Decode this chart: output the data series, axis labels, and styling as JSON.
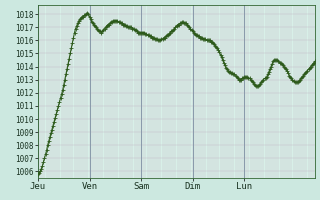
{
  "bg_color": "#cce8e0",
  "plot_bg_color": "#d8f0e8",
  "line_color": "#2d5a1b",
  "marker_color": "#2d5a1b",
  "grid_color_minor": "#c0d4c8",
  "grid_color_major": "#7799aa",
  "ylim": [
    1005.5,
    1018.7
  ],
  "yticks": [
    1006,
    1007,
    1008,
    1009,
    1010,
    1011,
    1012,
    1013,
    1014,
    1015,
    1016,
    1017,
    1018
  ],
  "day_labels": [
    "Jeu",
    "Ven",
    "Sam",
    "Dim",
    "Lun"
  ],
  "day_positions": [
    0,
    48,
    96,
    144,
    192
  ],
  "y_values": [
    1005.8,
    1005.9,
    1006.0,
    1006.2,
    1006.4,
    1006.7,
    1007.0,
    1007.3,
    1007.6,
    1008.0,
    1008.3,
    1008.6,
    1008.9,
    1009.2,
    1009.5,
    1009.8,
    1010.1,
    1010.4,
    1010.7,
    1011.0,
    1011.3,
    1011.6,
    1011.9,
    1012.2,
    1012.6,
    1013.0,
    1013.4,
    1013.8,
    1014.2,
    1014.6,
    1015.0,
    1015.4,
    1015.8,
    1016.2,
    1016.6,
    1016.9,
    1017.1,
    1017.3,
    1017.5,
    1017.6,
    1017.7,
    1017.8,
    1017.8,
    1017.9,
    1017.9,
    1018.0,
    1018.1,
    1018.0,
    1017.8,
    1017.6,
    1017.4,
    1017.3,
    1017.2,
    1017.1,
    1017.0,
    1016.9,
    1016.8,
    1016.7,
    1016.7,
    1016.6,
    1016.7,
    1016.8,
    1016.9,
    1017.0,
    1017.1,
    1017.2,
    1017.2,
    1017.3,
    1017.4,
    1017.4,
    1017.5,
    1017.5,
    1017.5,
    1017.5,
    1017.5,
    1017.4,
    1017.4,
    1017.3,
    1017.3,
    1017.2,
    1017.2,
    1017.2,
    1017.1,
    1017.1,
    1017.0,
    1017.0,
    1017.0,
    1017.0,
    1016.9,
    1016.9,
    1016.8,
    1016.8,
    1016.7,
    1016.6,
    1016.6,
    1016.6,
    1016.6,
    1016.6,
    1016.6,
    1016.6,
    1016.5,
    1016.5,
    1016.4,
    1016.4,
    1016.3,
    1016.3,
    1016.2,
    1016.2,
    1016.2,
    1016.1,
    1016.1,
    1016.1,
    1016.0,
    1016.0,
    1016.0,
    1016.1,
    1016.1,
    1016.2,
    1016.2,
    1016.3,
    1016.4,
    1016.4,
    1016.5,
    1016.6,
    1016.7,
    1016.7,
    1016.8,
    1016.9,
    1017.0,
    1017.1,
    1017.2,
    1017.2,
    1017.3,
    1017.3,
    1017.4,
    1017.4,
    1017.3,
    1017.3,
    1017.3,
    1017.2,
    1017.1,
    1017.0,
    1016.9,
    1016.8,
    1016.7,
    1016.6,
    1016.5,
    1016.4,
    1016.4,
    1016.3,
    1016.3,
    1016.2,
    1016.2,
    1016.2,
    1016.1,
    1016.1,
    1016.1,
    1016.0,
    1016.0,
    1016.0,
    1016.0,
    1015.9,
    1015.9,
    1015.8,
    1015.7,
    1015.6,
    1015.5,
    1015.4,
    1015.3,
    1015.1,
    1014.9,
    1014.7,
    1014.5,
    1014.3,
    1014.1,
    1013.9,
    1013.8,
    1013.7,
    1013.6,
    1013.6,
    1013.5,
    1013.5,
    1013.4,
    1013.4,
    1013.3,
    1013.2,
    1013.1,
    1013.0,
    1013.0,
    1013.0,
    1013.1,
    1013.1,
    1013.2,
    1013.2,
    1013.2,
    1013.2,
    1013.1,
    1013.1,
    1013.0,
    1012.9,
    1012.8,
    1012.7,
    1012.6,
    1012.5,
    1012.5,
    1012.5,
    1012.6,
    1012.7,
    1012.8,
    1012.9,
    1013.0,
    1013.1,
    1013.1,
    1013.2,
    1013.4,
    1013.6,
    1013.8,
    1014.0,
    1014.2,
    1014.4,
    1014.5,
    1014.5,
    1014.5,
    1014.5,
    1014.4,
    1014.3,
    1014.3,
    1014.2,
    1014.1,
    1014.0,
    1013.9,
    1013.8,
    1013.7,
    1013.5,
    1013.3,
    1013.2,
    1013.1,
    1013.0,
    1012.9,
    1012.8,
    1012.8,
    1012.8,
    1012.8,
    1012.9,
    1013.0,
    1013.1,
    1013.2,
    1013.3,
    1013.4,
    1013.5,
    1013.6,
    1013.7,
    1013.8,
    1013.9,
    1014.0,
    1014.1,
    1014.2,
    1014.3,
    1014.4
  ]
}
